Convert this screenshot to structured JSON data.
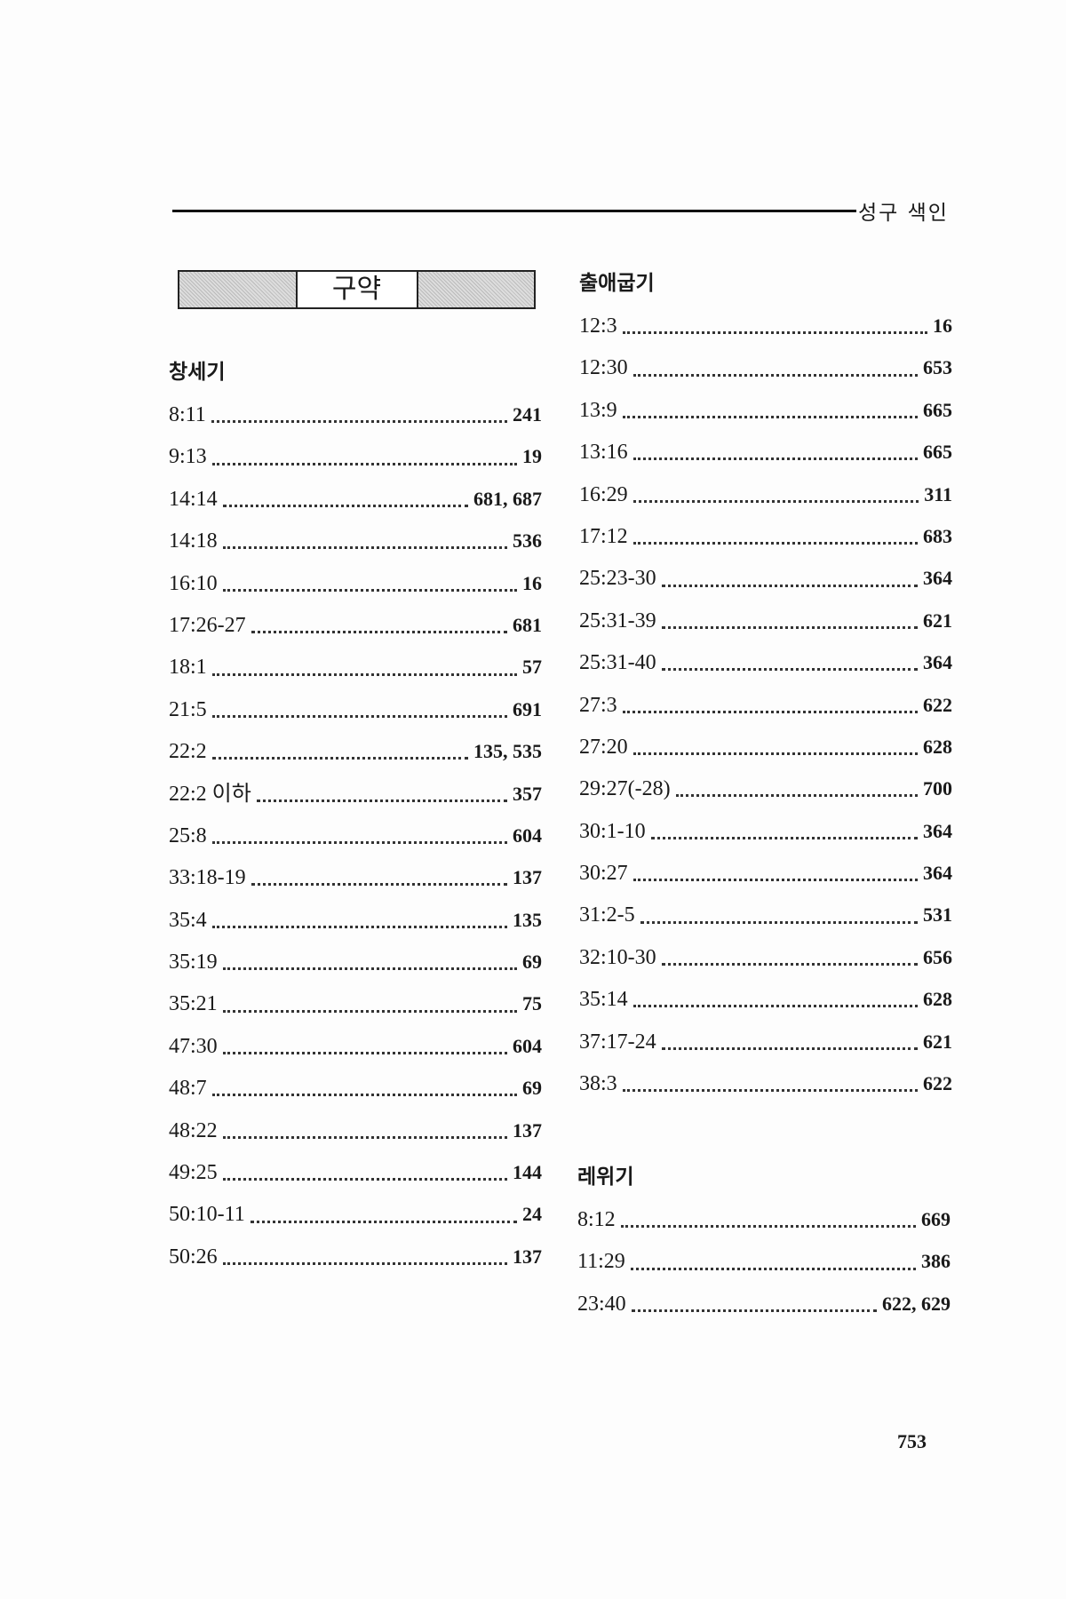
{
  "running_head": "성구 색인",
  "section_box": "구약",
  "books": [
    {
      "title": "창세기",
      "entries": [
        {
          "ref": "8:11",
          "pages": "241"
        },
        {
          "ref": "9:13",
          "pages": "19"
        },
        {
          "ref": "14:14",
          "pages": "681, 687"
        },
        {
          "ref": "14:18",
          "pages": "536"
        },
        {
          "ref": "16:10",
          "pages": "16"
        },
        {
          "ref": "17:26-27",
          "pages": "681"
        },
        {
          "ref": "18:1",
          "pages": "57"
        },
        {
          "ref": "21:5",
          "pages": "691"
        },
        {
          "ref": "22:2",
          "pages": "135, 535"
        },
        {
          "ref": "22:2 이하",
          "pages": "357"
        },
        {
          "ref": "25:8",
          "pages": "604"
        },
        {
          "ref": "33:18-19",
          "pages": "137"
        },
        {
          "ref": "35:4",
          "pages": "135"
        },
        {
          "ref": "35:19",
          "pages": "69"
        },
        {
          "ref": "35:21",
          "pages": "75"
        },
        {
          "ref": "47:30",
          "pages": "604"
        },
        {
          "ref": "48:7",
          "pages": "69"
        },
        {
          "ref": "48:22",
          "pages": "137"
        },
        {
          "ref": "49:25",
          "pages": "144"
        },
        {
          "ref": "50:10-11",
          "pages": "24"
        },
        {
          "ref": "50:26",
          "pages": "137"
        }
      ]
    },
    {
      "title": "출애굽기",
      "entries": [
        {
          "ref": "12:3",
          "pages": "16"
        },
        {
          "ref": "12:30",
          "pages": "653"
        },
        {
          "ref": "13:9",
          "pages": "665"
        },
        {
          "ref": "13:16",
          "pages": "665"
        },
        {
          "ref": "16:29",
          "pages": "311"
        },
        {
          "ref": "17:12",
          "pages": "683"
        },
        {
          "ref": "25:23-30",
          "pages": "364"
        },
        {
          "ref": "25:31-39",
          "pages": "621"
        },
        {
          "ref": "25:31-40",
          "pages": "364"
        },
        {
          "ref": "27:3",
          "pages": "622"
        },
        {
          "ref": "27:20",
          "pages": "628"
        },
        {
          "ref": "29:27(-28)",
          "pages": "700"
        },
        {
          "ref": "30:1-10",
          "pages": "364"
        },
        {
          "ref": "30:27",
          "pages": "364"
        },
        {
          "ref": "31:2-5",
          "pages": "531"
        },
        {
          "ref": "32:10-30",
          "pages": "656"
        },
        {
          "ref": "35:14",
          "pages": "628"
        },
        {
          "ref": "37:17-24",
          "pages": "621"
        },
        {
          "ref": "38:3",
          "pages": "622"
        }
      ]
    },
    {
      "title": "레위기",
      "entries": [
        {
          "ref": "8:12",
          "pages": "669"
        },
        {
          "ref": "11:29",
          "pages": "386"
        },
        {
          "ref": "23:40",
          "pages": "622, 629"
        }
      ]
    }
  ],
  "page_number": "753"
}
